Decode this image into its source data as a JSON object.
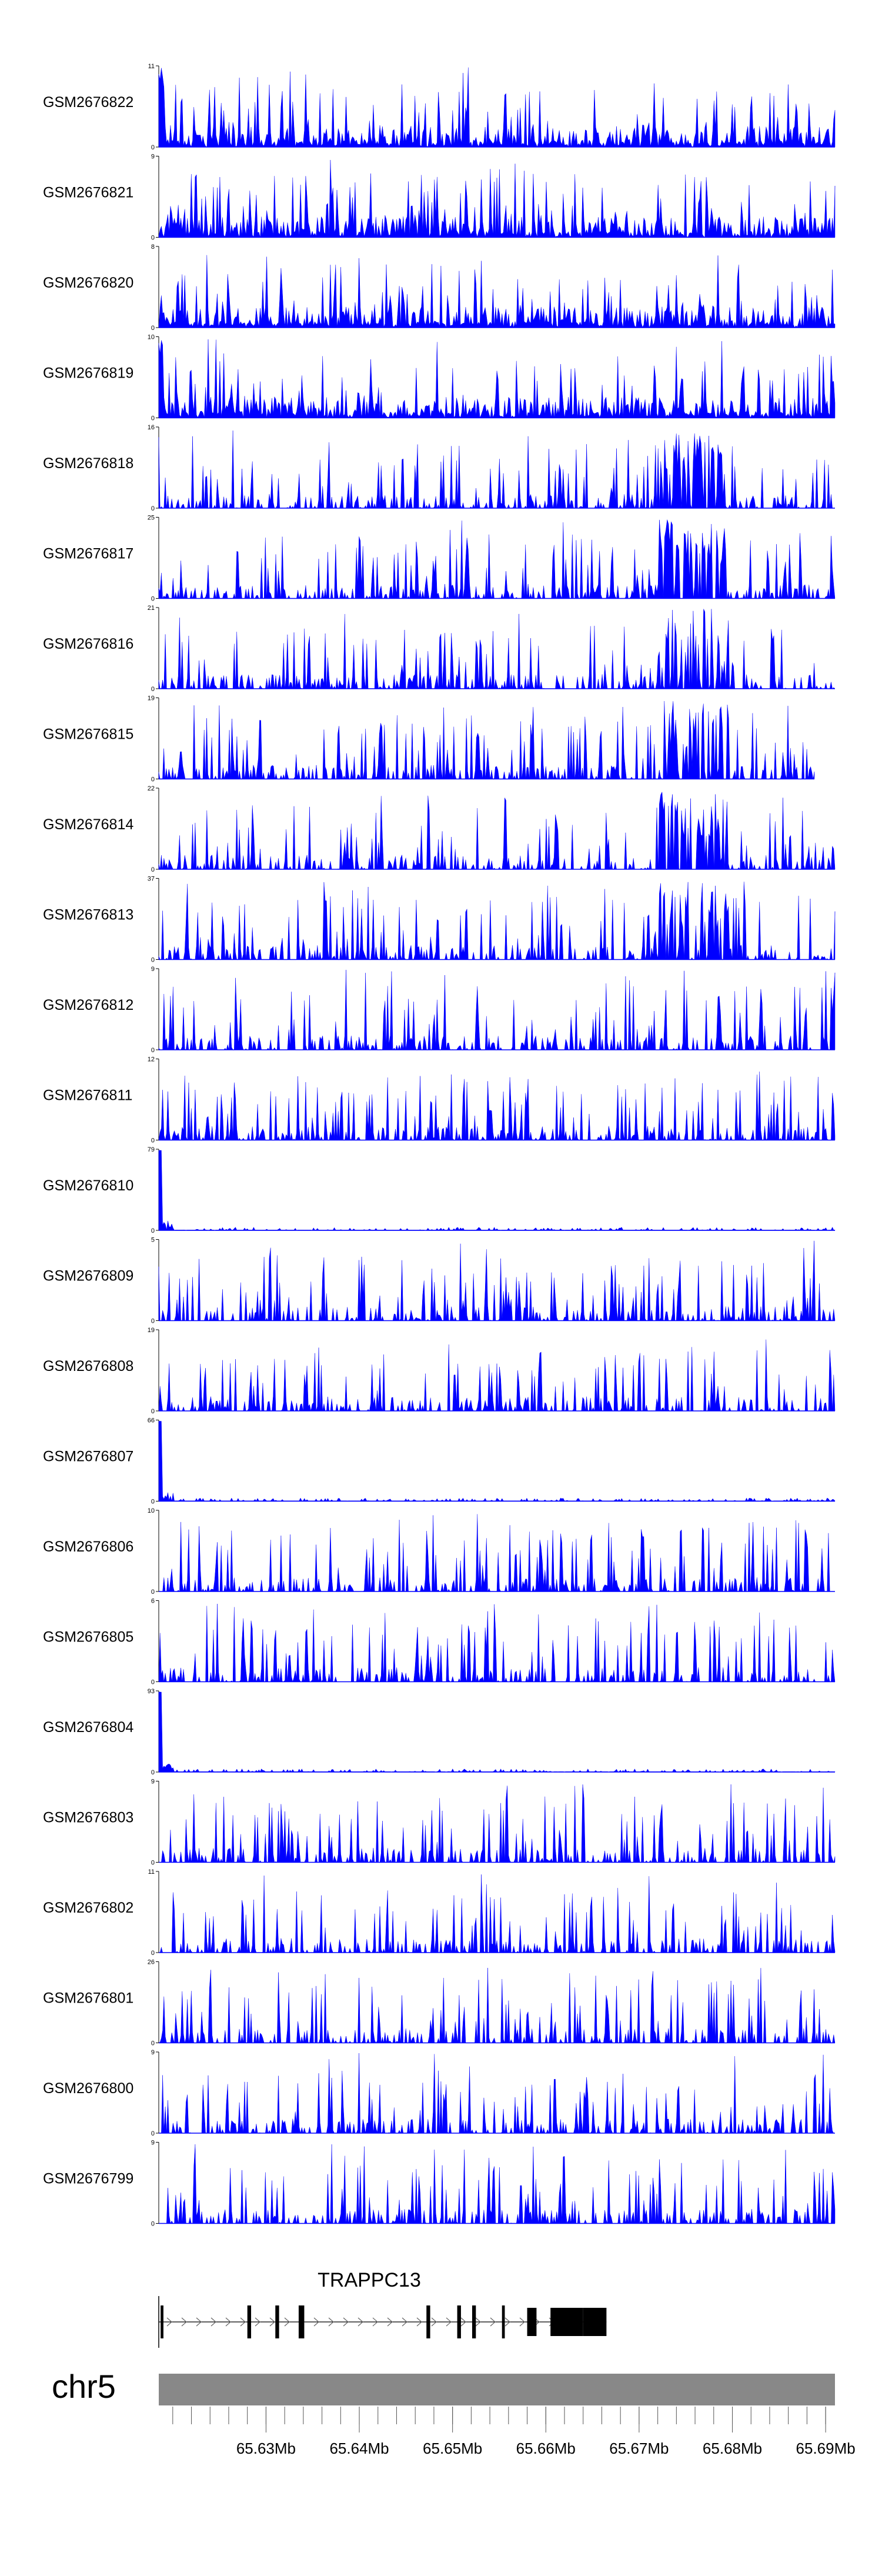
{
  "chart_data": {
    "type": "area",
    "tracks": [
      {
        "name": "GSM2676822",
        "ymax": "11",
        "ymin": "0"
      },
      {
        "name": "GSM2676821",
        "ymax": "9",
        "ymin": "0"
      },
      {
        "name": "GSM2676820",
        "ymax": "8",
        "ymin": "0"
      },
      {
        "name": "GSM2676819",
        "ymax": "10",
        "ymin": "0"
      },
      {
        "name": "GSM2676818",
        "ymax": "16",
        "ymin": "0"
      },
      {
        "name": "GSM2676817",
        "ymax": "25",
        "ymin": "0"
      },
      {
        "name": "GSM2676816",
        "ymax": "21",
        "ymin": "0"
      },
      {
        "name": "GSM2676815",
        "ymax": "19",
        "ymin": "0"
      },
      {
        "name": "GSM2676814",
        "ymax": "22",
        "ymin": "0"
      },
      {
        "name": "GSM2676813",
        "ymax": "37",
        "ymin": "0"
      },
      {
        "name": "GSM2676812",
        "ymax": "9",
        "ymin": "0"
      },
      {
        "name": "GSM2676811",
        "ymax": "12",
        "ymin": "0"
      },
      {
        "name": "GSM2676810",
        "ymax": "79",
        "ymin": "0"
      },
      {
        "name": "GSM2676809",
        "ymax": "5",
        "ymin": "0"
      },
      {
        "name": "GSM2676808",
        "ymax": "19",
        "ymin": "0"
      },
      {
        "name": "GSM2676807",
        "ymax": "66",
        "ymin": "0"
      },
      {
        "name": "GSM2676806",
        "ymax": "10",
        "ymin": "0"
      },
      {
        "name": "GSM2676805",
        "ymax": "6",
        "ymin": "0"
      },
      {
        "name": "GSM2676804",
        "ymax": "93",
        "ymin": "0"
      },
      {
        "name": "GSM2676803",
        "ymax": "9",
        "ymin": "0"
      },
      {
        "name": "GSM2676802",
        "ymax": "11",
        "ymin": "0"
      },
      {
        "name": "GSM2676801",
        "ymax": "26",
        "ymin": "0"
      },
      {
        "name": "GSM2676800",
        "ymax": "9",
        "ymin": "0"
      },
      {
        "name": "GSM2676799",
        "ymax": "9",
        "ymin": "0"
      }
    ],
    "gene": {
      "name": "TRAPPC13",
      "start_mb": 65.6185,
      "end_mb": 65.6665,
      "exons_mb": [
        [
          65.6187,
          65.619
        ],
        [
          65.628,
          65.6284
        ],
        [
          65.631,
          65.6314
        ],
        [
          65.6335,
          65.6339
        ],
        [
          65.6337,
          65.6341
        ],
        [
          65.6472,
          65.6476
        ],
        [
          65.6505,
          65.6509
        ],
        [
          65.6521,
          65.6525
        ],
        [
          65.6553,
          65.6556
        ],
        [
          65.658,
          65.659
        ],
        [
          65.6605,
          65.664
        ],
        [
          65.664,
          65.6665
        ]
      ]
    },
    "chromosome": "chr5",
    "axis": {
      "start_mb": 65.6185,
      "end_mb": 65.691,
      "tick_labels": [
        "65.63Mb",
        "65.64Mb",
        "65.65Mb",
        "65.66Mb",
        "65.67Mb",
        "65.68Mb",
        "65.69Mb"
      ],
      "tick_values_mb": [
        65.63,
        65.64,
        65.65,
        65.66,
        65.67,
        65.68,
        65.69
      ],
      "minor_tick_step_mb": 0.002
    },
    "colors": {
      "coverage": "#0000ff",
      "chromosome_bar": "#888888",
      "exon": "#000000",
      "intron": "#000000"
    }
  }
}
